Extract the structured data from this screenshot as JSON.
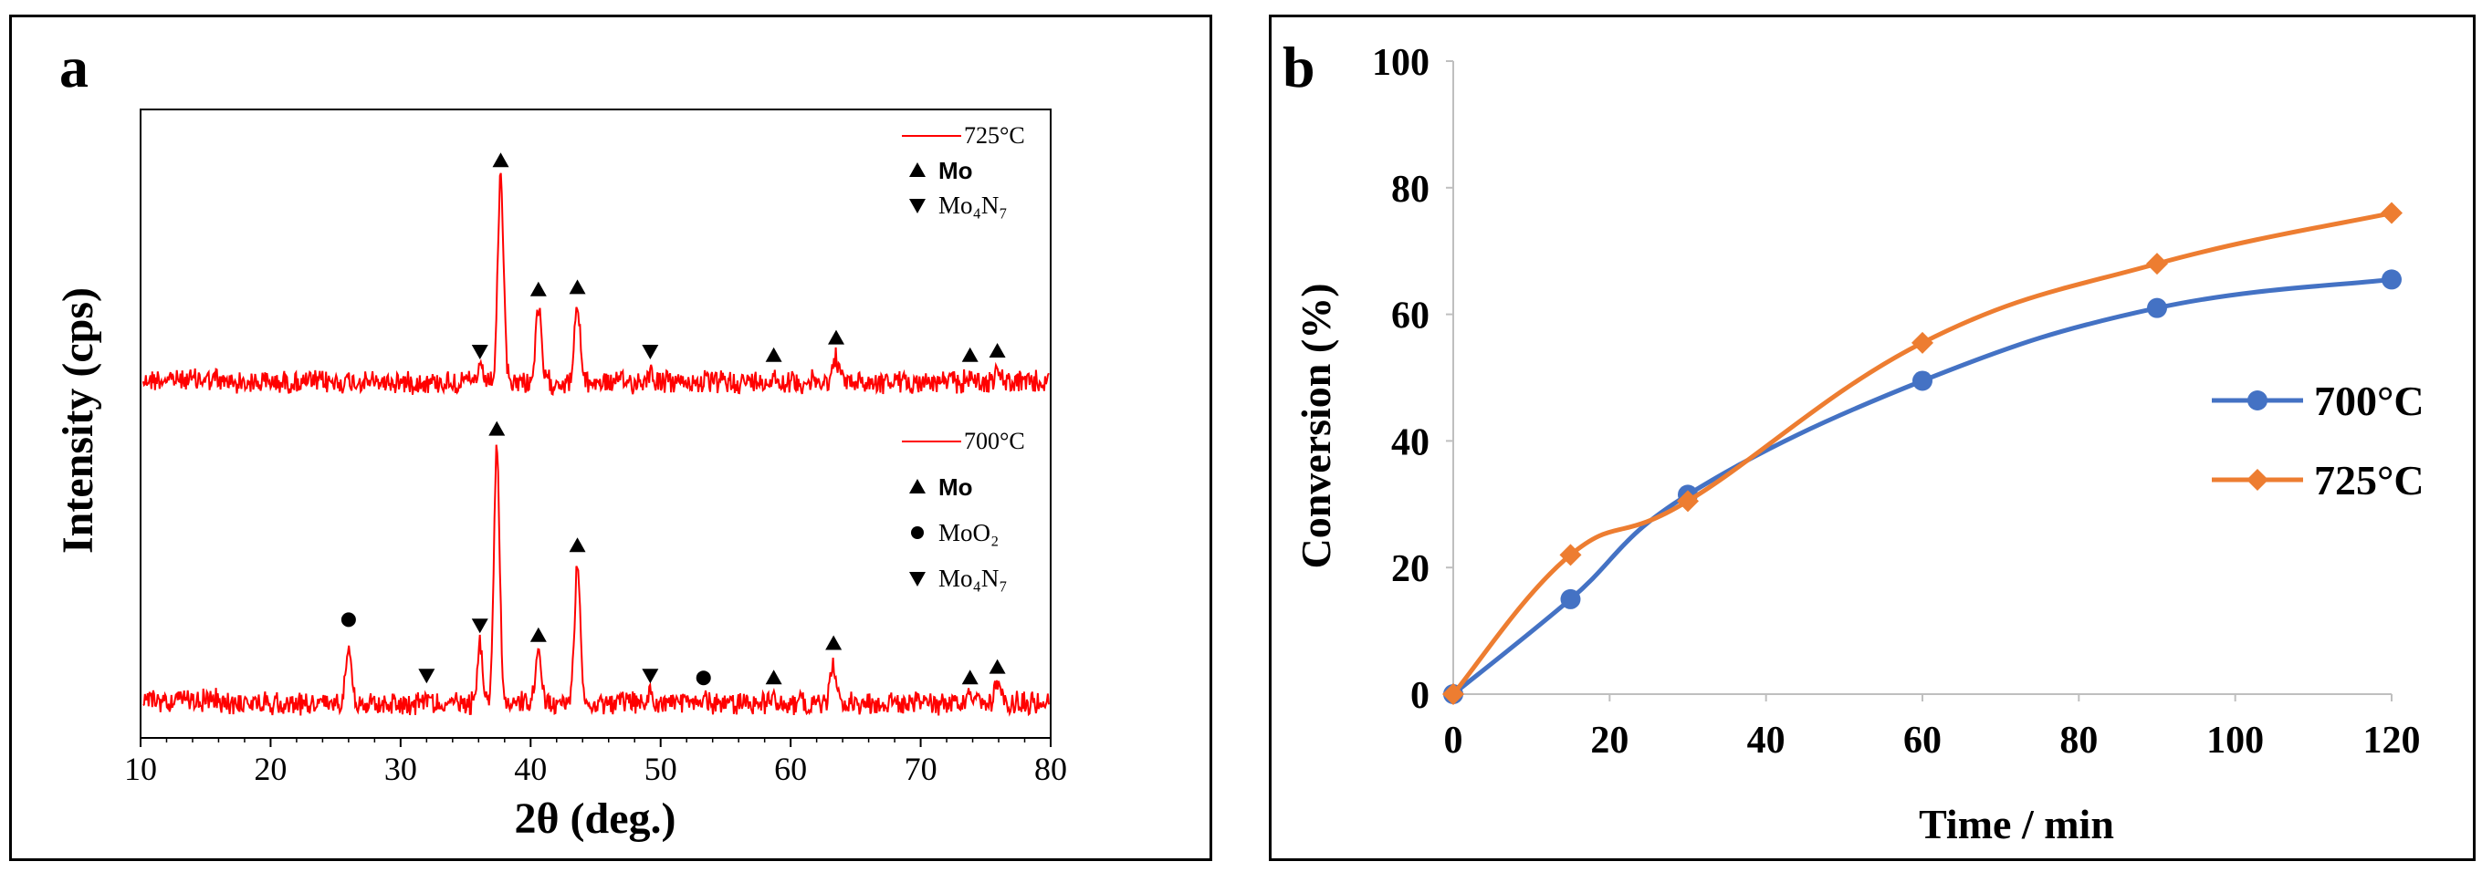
{
  "chart_data": [
    {
      "panel_label": "a",
      "type": "line",
      "xlabel": "2θ (deg.)",
      "ylabel": "Intensity (cps)",
      "xlim": [
        10,
        80
      ],
      "xticks": [
        "10",
        "20",
        "30",
        "40",
        "50",
        "60",
        "70",
        "80"
      ],
      "line_color": "#ff0000",
      "series": [
        {
          "name": "725°C",
          "legend": [
            {
              "marker": "up-triangle",
              "label": "Mo"
            },
            {
              "marker": "down-triangle",
              "label": "Mo₄N₇"
            }
          ],
          "peaks": [
            {
              "x": 37.7,
              "h": 0.92
            },
            {
              "x": 40.6,
              "h": 0.33
            },
            {
              "x": 43.6,
              "h": 0.34
            },
            {
              "x": 36.1,
              "h": 0.05
            },
            {
              "x": 49.2,
              "h": 0.05
            },
            {
              "x": 58.7,
              "h": 0.03
            },
            {
              "x": 63.5,
              "h": 0.11
            },
            {
              "x": 73.8,
              "h": 0.03
            },
            {
              "x": 75.9,
              "h": 0.05
            }
          ],
          "markers": [
            {
              "x": 37.7,
              "type": "up"
            },
            {
              "x": 40.6,
              "type": "up"
            },
            {
              "x": 43.6,
              "type": "up"
            },
            {
              "x": 58.7,
              "type": "up"
            },
            {
              "x": 63.5,
              "type": "up"
            },
            {
              "x": 73.8,
              "type": "up"
            },
            {
              "x": 75.9,
              "type": "up"
            },
            {
              "x": 36.1,
              "type": "down"
            },
            {
              "x": 49.2,
              "type": "down"
            }
          ]
        },
        {
          "name": "700°C",
          "legend": [
            {
              "marker": "up-triangle",
              "label": "Mo"
            },
            {
              "marker": "circle",
              "label": "MoO₂"
            },
            {
              "marker": "down-triangle",
              "label": "Mo₄N₇"
            }
          ],
          "peaks": [
            {
              "x": 26.0,
              "h": 0.24
            },
            {
              "x": 32.0,
              "h": 0.03
            },
            {
              "x": 36.1,
              "h": 0.22
            },
            {
              "x": 37.4,
              "h": 0.96
            },
            {
              "x": 40.6,
              "h": 0.18
            },
            {
              "x": 43.6,
              "h": 0.52
            },
            {
              "x": 49.2,
              "h": 0.03
            },
            {
              "x": 53.3,
              "h": 0.02
            },
            {
              "x": 58.7,
              "h": 0.02
            },
            {
              "x": 63.3,
              "h": 0.15
            },
            {
              "x": 73.8,
              "h": 0.02
            },
            {
              "x": 75.9,
              "h": 0.06
            }
          ],
          "markers": [
            {
              "x": 37.4,
              "type": "up"
            },
            {
              "x": 40.6,
              "type": "up"
            },
            {
              "x": 43.6,
              "type": "up"
            },
            {
              "x": 58.7,
              "type": "up"
            },
            {
              "x": 63.3,
              "type": "up"
            },
            {
              "x": 73.8,
              "type": "up"
            },
            {
              "x": 75.9,
              "type": "up"
            },
            {
              "x": 26.0,
              "type": "circle"
            },
            {
              "x": 53.3,
              "type": "circle"
            },
            {
              "x": 32.0,
              "type": "down"
            },
            {
              "x": 36.1,
              "type": "down"
            },
            {
              "x": 49.2,
              "type": "down"
            }
          ]
        }
      ]
    },
    {
      "panel_label": "b",
      "type": "line",
      "xlabel": "Time / min",
      "ylabel": "Conversion (%)",
      "xlim": [
        0,
        120
      ],
      "ylim": [
        0,
        100
      ],
      "xticks": [
        0,
        20,
        40,
        60,
        80,
        100,
        120
      ],
      "yticks": [
        0,
        20,
        40,
        60,
        80,
        100
      ],
      "legend_position": "right",
      "series": [
        {
          "name": "700°C",
          "color": "#4472c4",
          "marker": "circle",
          "x": [
            0,
            15,
            30,
            60,
            90,
            120
          ],
          "y": [
            0,
            15,
            31.5,
            49.5,
            61,
            65.5
          ]
        },
        {
          "name": "725°C",
          "color": "#ed7d31",
          "marker": "diamond",
          "x": [
            0,
            15,
            30,
            60,
            90,
            120
          ],
          "y": [
            0,
            22,
            30.5,
            55.5,
            68,
            76
          ]
        }
      ]
    }
  ]
}
